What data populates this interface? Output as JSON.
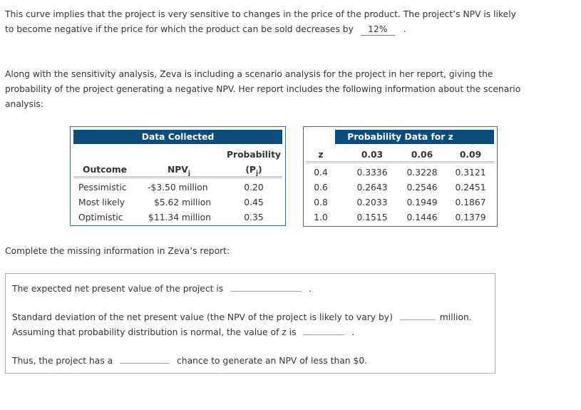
{
  "paragraph1": {
    "line1": "This curve implies that the project is very sensitive to changes in the price of the product. The project’s NPV is likely",
    "line2_before": "to become negative if the price for which the product can be sold decreases by",
    "answer": "12%",
    "line2_after": "."
  },
  "paragraph2": {
    "line1": "Along with the sensitivity analysis, Zeva is including a scenario analysis for the project in her report, giving the",
    "line2": "probability of the project generating a negative NPV. Her report includes the following information about the scenario",
    "line3": "analysis:"
  },
  "data_table": {
    "title": "Data Collected",
    "col_outcome": "Outcome",
    "col_npv": "NPV",
    "col_npv_sub": "j",
    "col_prob_line1": "Probability",
    "col_prob_line2": "(P",
    "col_prob_sub": "j",
    "col_prob_close": ")",
    "rows": [
      {
        "outcome": "Pessimistic",
        "npv": "-$3.50 million",
        "prob": "0.20"
      },
      {
        "outcome": "Most likely",
        "npv": "$5.62 million",
        "prob": "0.45"
      },
      {
        "outcome": "Optimistic",
        "npv": "$11.34 million",
        "prob": "0.35"
      }
    ]
  },
  "prob_table": {
    "title": "Probability Data for z",
    "col_z": "z",
    "cols": [
      "0.03",
      "0.06",
      "0.09"
    ],
    "rows": [
      {
        "z": "0.4",
        "v": [
          "0.3336",
          "0.3228",
          "0.3121"
        ]
      },
      {
        "z": "0.6",
        "v": [
          "0.2643",
          "0.2546",
          "0.2451"
        ]
      },
      {
        "z": "0.8",
        "v": [
          "0.2033",
          "0.1949",
          "0.1867"
        ]
      },
      {
        "z": "1.0",
        "v": [
          "0.1515",
          "0.1446",
          "0.1379"
        ]
      }
    ]
  },
  "instruction": "Complete the missing information in Zeva’s report:",
  "report": {
    "expected_npv": {
      "before": "The expected net present value of the project is",
      "after": "."
    },
    "std_dev": {
      "before": "Standard deviation of the net present value (the NPV of the project is likely to vary by)",
      "after": "million."
    },
    "z_value": {
      "before": "Assuming that probability distribution is normal, the value of z is",
      "after": "."
    },
    "chance": {
      "before": "Thus, the project has a",
      "after": "chance to generate an NPV of less than $0."
    }
  }
}
